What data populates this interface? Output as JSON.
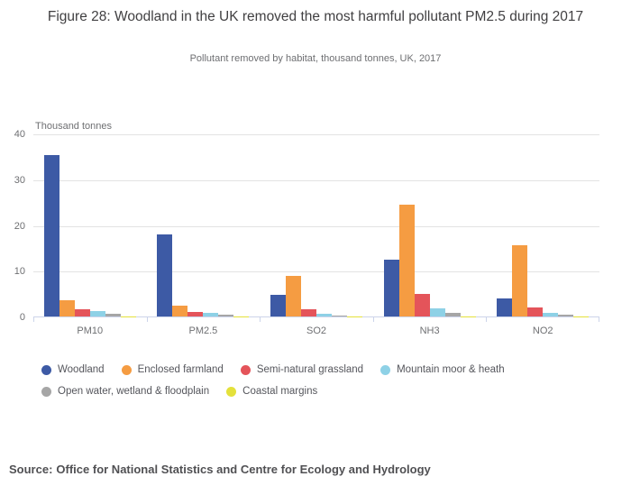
{
  "chart_data": {
    "type": "bar",
    "title": "Figure 28: Woodland in the UK removed the most harmful pollutant PM2.5 during 2017",
    "subtitle": "Pollutant removed by habitat, thousand tonnes, UK, 2017",
    "ylabel": "Thousand tonnes",
    "xlabel": "",
    "categories": [
      "PM10",
      "PM2.5",
      "SO2",
      "NH3",
      "NO2"
    ],
    "series": [
      {
        "name": "Woodland",
        "color": "#3d5aa5",
        "values": [
          35.3,
          17.9,
          4.8,
          12.4,
          3.9
        ]
      },
      {
        "name": "Enclosed farmland",
        "color": "#f59c42",
        "values": [
          3.5,
          2.3,
          8.8,
          24.5,
          15.5
        ]
      },
      {
        "name": "Semi-natural grassland",
        "color": "#e4545a",
        "values": [
          1.5,
          0.9,
          1.6,
          4.9,
          1.9
        ]
      },
      {
        "name": "Mountain moor & heath",
        "color": "#8ed1e6",
        "values": [
          1.1,
          0.7,
          0.6,
          1.7,
          0.8
        ]
      },
      {
        "name": "Open water, wetland & floodplain",
        "color": "#a6a6a6",
        "values": [
          0.5,
          0.3,
          0.2,
          0.8,
          0.3
        ]
      },
      {
        "name": "Coastal margins",
        "color": "#e4e13b",
        "values": [
          0.1,
          0.05,
          0.05,
          0.1,
          0.05
        ]
      }
    ],
    "ylim": [
      0,
      40
    ],
    "yticks": [
      0,
      10,
      20,
      30,
      40
    ],
    "grid": true,
    "legend_position": "bottom"
  },
  "source": {
    "label": "Source:",
    "text": "Office for National Statistics and Centre for Ecology and Hydrology"
  },
  "colors": {
    "gridline": "#e3e3e3",
    "axis_line": "#ccd4ea",
    "title_text": "#414042",
    "muted_text": "#6e6f72",
    "legend_text": "#55565c",
    "source_text": "#505053"
  }
}
